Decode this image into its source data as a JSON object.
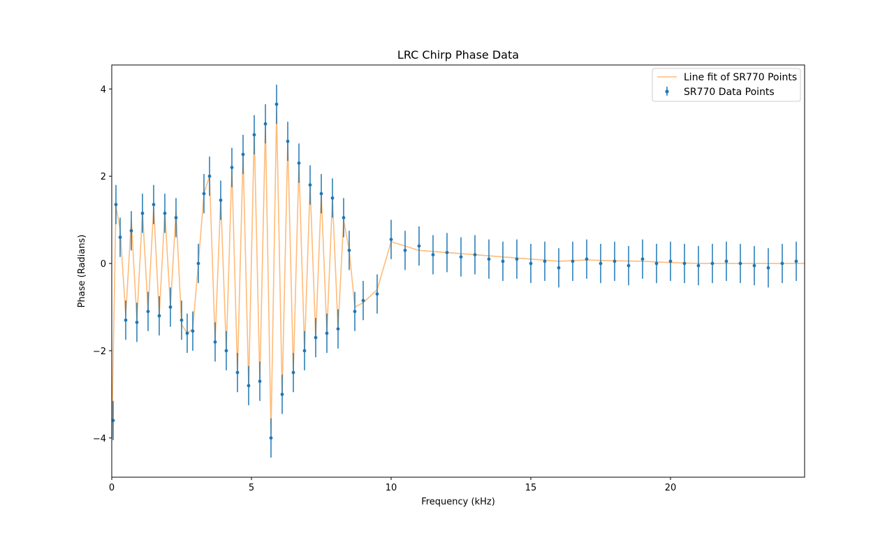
{
  "chart_data": {
    "type": "scatter",
    "title": "LRC Chirp Phase Data",
    "xlabel": "Frequency (kHz)",
    "ylabel": "Phase (Radians)",
    "xlim": [
      0,
      24.8
    ],
    "ylim": [
      -4.9,
      4.55
    ],
    "xticks": [
      0,
      5,
      10,
      15,
      20
    ],
    "yticks": [
      -4,
      -2,
      0,
      2,
      4
    ],
    "grid": false,
    "legend_position": "top-right",
    "colors": {
      "data": "#1f77b4",
      "fit": "#ffbb78",
      "fit_stroke": "#ff7f0e"
    },
    "series": [
      {
        "name": "Line fit of SR770 Points",
        "kind": "line",
        "x": [
          0.0,
          0.15,
          0.3,
          0.5,
          0.7,
          0.9,
          1.1,
          1.3,
          1.5,
          1.7,
          1.9,
          2.1,
          2.3,
          2.5,
          2.7,
          2.9,
          3.1,
          3.3,
          3.5,
          3.7,
          3.9,
          4.1,
          4.3,
          4.5,
          4.7,
          4.9,
          5.1,
          5.3,
          5.5,
          5.7,
          5.9,
          6.1,
          6.3,
          6.5,
          6.7,
          6.9,
          7.1,
          7.3,
          7.5,
          7.7,
          7.9,
          8.1,
          8.3,
          8.5,
          8.7,
          9.0,
          9.5,
          10.0,
          11.0,
          12.0,
          13.0,
          14.0,
          15.0,
          16.0,
          17.0,
          18.0,
          19.0,
          20.0,
          21.0,
          22.0,
          23.0,
          24.0,
          24.8
        ],
        "y": [
          -4.0,
          1.3,
          0.8,
          -1.2,
          1.0,
          -1.3,
          1.2,
          -1.1,
          1.3,
          -1.2,
          1.2,
          -1.0,
          1.2,
          -1.4,
          -1.6,
          -1.5,
          0.0,
          1.6,
          2.0,
          -1.8,
          1.5,
          -2.0,
          2.2,
          -2.5,
          2.5,
          -2.8,
          3.0,
          -2.7,
          3.2,
          -3.9,
          3.5,
          -3.0,
          2.8,
          -2.5,
          2.3,
          -2.0,
          1.8,
          -1.7,
          1.6,
          -1.6,
          1.5,
          -1.5,
          1.0,
          0.3,
          -1.0,
          -0.9,
          -0.6,
          0.5,
          0.3,
          0.25,
          0.2,
          0.15,
          0.1,
          0.05,
          0.08,
          0.06,
          0.05,
          0.02,
          0.0,
          0.0,
          0.0,
          0.0,
          0.0
        ]
      },
      {
        "name": "SR770 Data Points",
        "kind": "errorbar",
        "x": [
          0.05,
          0.15,
          0.3,
          0.5,
          0.7,
          0.9,
          1.1,
          1.3,
          1.5,
          1.7,
          1.9,
          2.1,
          2.3,
          2.5,
          2.7,
          2.9,
          3.1,
          3.3,
          3.5,
          3.7,
          3.9,
          4.1,
          4.3,
          4.5,
          4.7,
          4.9,
          5.1,
          5.3,
          5.5,
          5.7,
          5.9,
          6.1,
          6.3,
          6.5,
          6.7,
          6.9,
          7.1,
          7.3,
          7.5,
          7.7,
          7.9,
          8.1,
          8.3,
          8.5,
          8.7,
          9.0,
          9.5,
          10.0,
          10.5,
          11.0,
          11.5,
          12.0,
          12.5,
          13.0,
          13.5,
          14.0,
          14.5,
          15.0,
          15.5,
          16.0,
          16.5,
          17.0,
          17.5,
          18.0,
          18.5,
          19.0,
          19.5,
          20.0,
          20.5,
          21.0,
          21.5,
          22.0,
          22.5,
          23.0,
          23.5,
          24.0,
          24.5
        ],
        "y": [
          -3.6,
          1.35,
          0.6,
          -1.3,
          0.75,
          -1.35,
          1.15,
          -1.1,
          1.35,
          -1.2,
          1.15,
          -1.0,
          1.05,
          -1.3,
          -1.6,
          -1.55,
          0.0,
          1.6,
          2.0,
          -1.8,
          1.45,
          -2.0,
          2.2,
          -2.5,
          2.5,
          -2.8,
          2.95,
          -2.7,
          3.2,
          -4.0,
          3.65,
          -3.0,
          2.8,
          -2.5,
          2.3,
          -2.0,
          1.8,
          -1.7,
          1.6,
          -1.6,
          1.5,
          -1.5,
          1.05,
          0.3,
          -1.1,
          -0.85,
          -0.7,
          0.55,
          0.3,
          0.4,
          0.2,
          0.25,
          0.15,
          0.2,
          0.1,
          0.05,
          0.1,
          0.0,
          0.05,
          -0.1,
          0.05,
          0.1,
          0.0,
          0.05,
          -0.05,
          0.1,
          0.0,
          0.05,
          0.0,
          -0.05,
          0.0,
          0.05,
          0.0,
          -0.05,
          -0.1,
          0.0,
          0.05
        ],
        "yerr": [
          0.45,
          0.45,
          0.45,
          0.45,
          0.45,
          0.45,
          0.45,
          0.45,
          0.45,
          0.45,
          0.45,
          0.45,
          0.45,
          0.45,
          0.45,
          0.45,
          0.45,
          0.45,
          0.45,
          0.45,
          0.45,
          0.45,
          0.45,
          0.45,
          0.45,
          0.45,
          0.45,
          0.45,
          0.45,
          0.45,
          0.45,
          0.45,
          0.45,
          0.45,
          0.45,
          0.45,
          0.45,
          0.45,
          0.45,
          0.45,
          0.45,
          0.45,
          0.45,
          0.45,
          0.45,
          0.45,
          0.45,
          0.45,
          0.45,
          0.45,
          0.45,
          0.45,
          0.45,
          0.45,
          0.45,
          0.45,
          0.45,
          0.45,
          0.45,
          0.45,
          0.45,
          0.45,
          0.45,
          0.45,
          0.45,
          0.45,
          0.45,
          0.45,
          0.45,
          0.45,
          0.45,
          0.45,
          0.45,
          0.45,
          0.45,
          0.45,
          0.45
        ]
      }
    ]
  }
}
